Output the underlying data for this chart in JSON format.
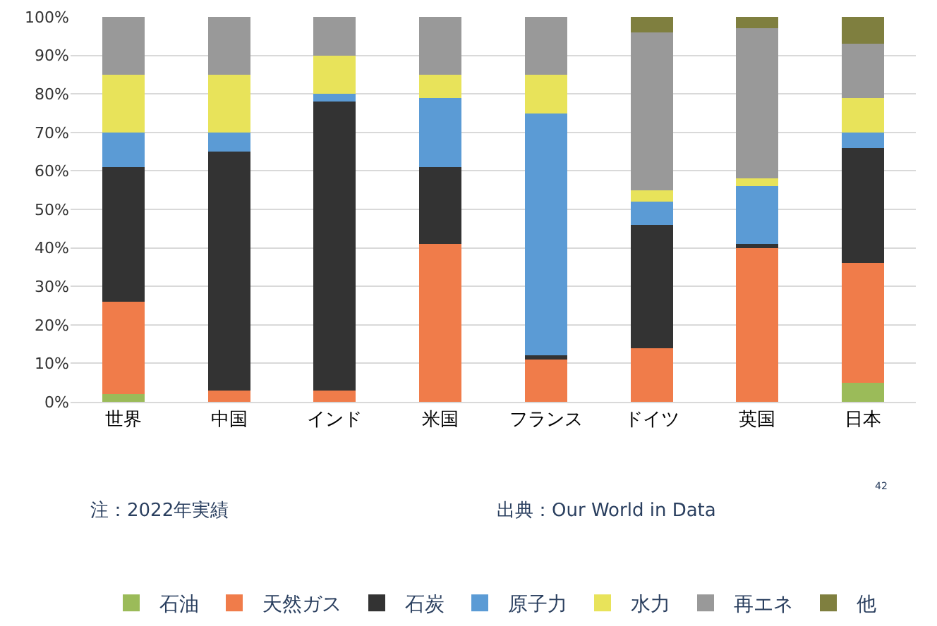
{
  "chart_data": {
    "type": "bar",
    "stacked": true,
    "categories": [
      "世界",
      "中国",
      "インド",
      "米国",
      "フランス",
      "ドイツ",
      "英国",
      "日本"
    ],
    "series": [
      {
        "name": "石油",
        "color": "#9bbb59",
        "values": [
          2,
          0,
          0,
          0,
          0,
          0,
          0,
          5
        ]
      },
      {
        "name": "天然ガス",
        "color": "#f07c4a",
        "values": [
          24,
          3,
          3,
          41,
          11,
          14,
          40,
          31
        ]
      },
      {
        "name": "石炭",
        "color": "#333333",
        "values": [
          35,
          62,
          75,
          20,
          1,
          32,
          1,
          30
        ]
      },
      {
        "name": "原子力",
        "color": "#5b9bd5",
        "values": [
          9,
          5,
          2,
          18,
          63,
          6,
          15,
          4
        ]
      },
      {
        "name": "水力",
        "color": "#e8e35a",
        "values": [
          15,
          15,
          10,
          6,
          10,
          3,
          2,
          9
        ]
      },
      {
        "name": "再エネ",
        "color": "#999999",
        "values": [
          15,
          15,
          10,
          15,
          15,
          41,
          39,
          14
        ]
      },
      {
        "name": "他",
        "color": "#7f7f3f",
        "values": [
          0,
          0,
          0,
          0,
          0,
          4,
          3,
          7
        ]
      }
    ],
    "ylim": [
      0,
      100
    ],
    "yticks": [
      {
        "value": 0,
        "label": "0%"
      },
      {
        "value": 10,
        "label": "10%"
      },
      {
        "value": 20,
        "label": "20%"
      },
      {
        "value": 30,
        "label": "30%"
      },
      {
        "value": 40,
        "label": "40%"
      },
      {
        "value": 50,
        "label": "50%"
      },
      {
        "value": 60,
        "label": "60%"
      },
      {
        "value": 70,
        "label": "70%"
      },
      {
        "value": 80,
        "label": "80%"
      },
      {
        "value": 90,
        "label": "90%"
      },
      {
        "value": 100,
        "label": "100%"
      }
    ],
    "grid": "y",
    "legend": "bottom",
    "annotations": [
      "注：2022年実績",
      "出典：Our World in Data",
      "42"
    ]
  }
}
